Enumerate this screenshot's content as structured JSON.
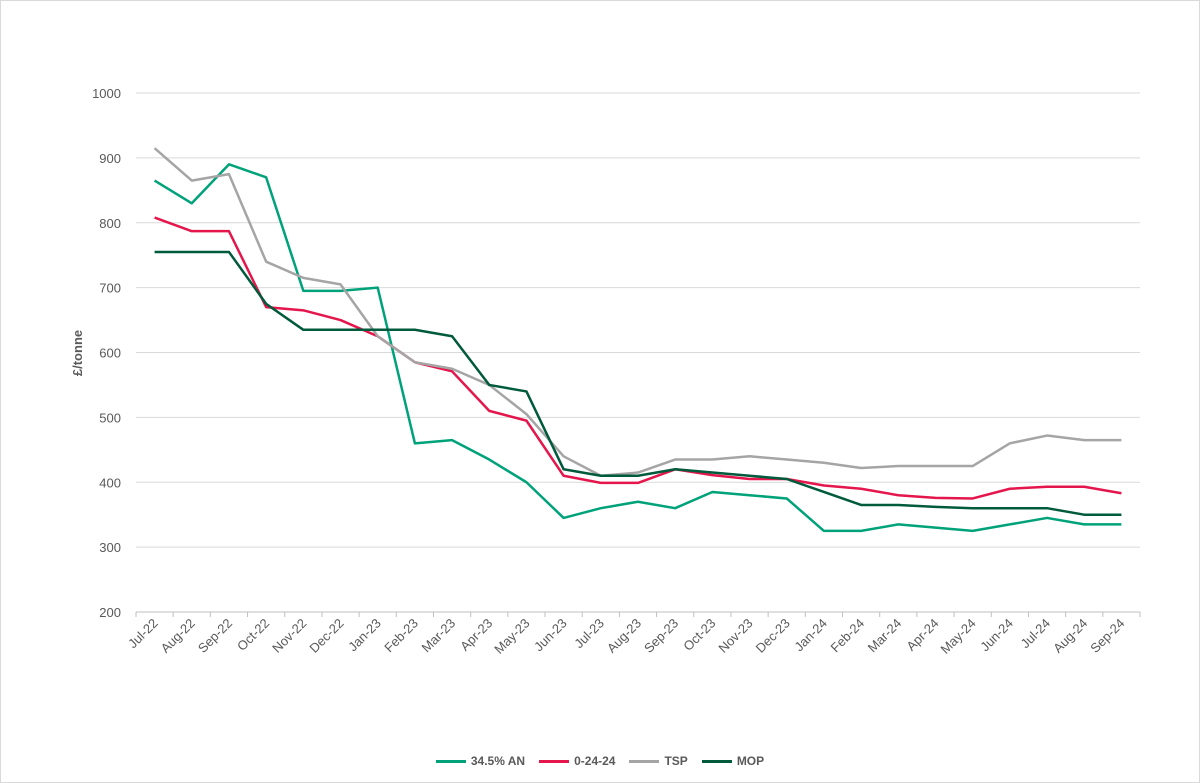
{
  "chart_data": {
    "type": "line",
    "title": "",
    "xlabel": "",
    "ylabel": "£/tonne",
    "ylim": [
      200,
      1000
    ],
    "yticks": [
      200,
      300,
      400,
      500,
      600,
      700,
      800,
      900,
      1000
    ],
    "grid": true,
    "legend_position": "bottom",
    "categories": [
      "Jul-22",
      "Aug-22",
      "Sep-22",
      "Oct-22",
      "Nov-22",
      "Dec-22",
      "Jan-23",
      "Feb-23",
      "Mar-23",
      "Apr-23",
      "May-23",
      "Jun-23",
      "Jul-23",
      "Aug-23",
      "Sep-23",
      "Oct-23",
      "Nov-23",
      "Dec-23",
      "Jan-24",
      "Feb-24",
      "Mar-24",
      "Apr-24",
      "May-24",
      "Jun-24",
      "Jul-24",
      "Aug-24",
      "Sep-24"
    ],
    "series": [
      {
        "name": "34.5% AN",
        "color": "#00a27a",
        "values": [
          865,
          830,
          890,
          870,
          695,
          695,
          700,
          460,
          465,
          435,
          400,
          345,
          360,
          370,
          360,
          385,
          380,
          375,
          325,
          325,
          335,
          330,
          325,
          335,
          345,
          335,
          335
        ]
      },
      {
        "name": "0-24-24",
        "color": "#e4164b",
        "values": [
          808,
          787,
          787,
          670,
          665,
          650,
          625,
          585,
          571,
          510,
          495,
          410,
          399,
          399,
          420,
          411,
          405,
          405,
          395,
          390,
          380,
          376,
          375,
          390,
          393,
          393,
          383
        ]
      },
      {
        "name": "TSP",
        "color": "#a5a5a5",
        "values": [
          915,
          865,
          875,
          740,
          715,
          705,
          625,
          585,
          575,
          550,
          505,
          440,
          410,
          415,
          435,
          435,
          440,
          435,
          430,
          422,
          425,
          425,
          425,
          460,
          472,
          465,
          465
        ]
      },
      {
        "name": "MOP",
        "color": "#005a3c",
        "values": [
          755,
          755,
          755,
          675,
          635,
          635,
          635,
          635,
          625,
          550,
          540,
          420,
          410,
          410,
          420,
          415,
          410,
          405,
          385,
          365,
          365,
          362,
          360,
          360,
          360,
          350,
          350
        ]
      }
    ]
  }
}
